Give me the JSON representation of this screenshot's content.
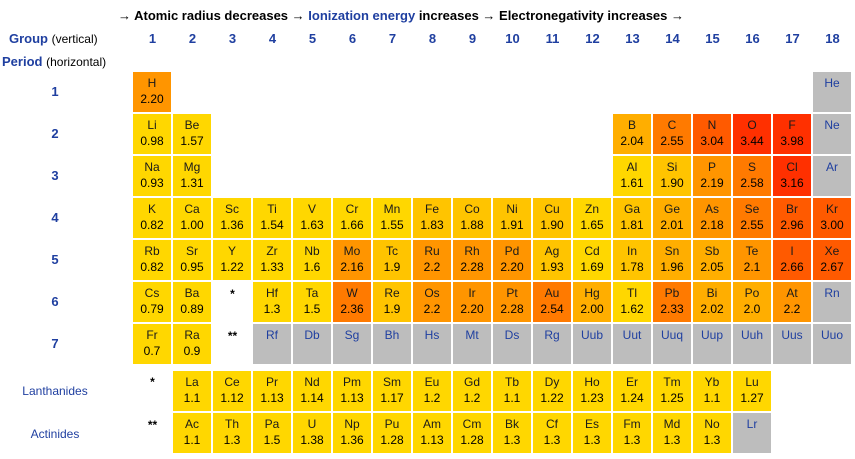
{
  "header": {
    "part1": "→ Atomic radius decreases →",
    "part2": "Ionization energy",
    "part3": "increases → Electronegativity increases →"
  },
  "labels": {
    "group": "Group",
    "group_sub": "(vertical)",
    "period": "Period",
    "period_sub": "(horizontal)",
    "lanthanides": "Lanthanides",
    "actinides": "Actinides"
  },
  "groups": [
    "1",
    "2",
    "3",
    "4",
    "5",
    "6",
    "7",
    "8",
    "9",
    "10",
    "11",
    "12",
    "13",
    "14",
    "15",
    "16",
    "17",
    "18"
  ],
  "periods": [
    "1",
    "2",
    "3",
    "4",
    "5",
    "6",
    "7"
  ],
  "stars": {
    "row6": "*",
    "row7": "**",
    "lan": "*",
    "act": "**"
  },
  "elements": [
    {
      "r": 1,
      "c": 1,
      "s": "H",
      "v": "2.20"
    },
    {
      "r": 1,
      "c": 18,
      "s": "He",
      "v": ""
    },
    {
      "r": 2,
      "c": 1,
      "s": "Li",
      "v": "0.98"
    },
    {
      "r": 2,
      "c": 2,
      "s": "Be",
      "v": "1.57"
    },
    {
      "r": 2,
      "c": 13,
      "s": "B",
      "v": "2.04"
    },
    {
      "r": 2,
      "c": 14,
      "s": "C",
      "v": "2.55"
    },
    {
      "r": 2,
      "c": 15,
      "s": "N",
      "v": "3.04"
    },
    {
      "r": 2,
      "c": 16,
      "s": "O",
      "v": "3.44"
    },
    {
      "r": 2,
      "c": 17,
      "s": "F",
      "v": "3.98"
    },
    {
      "r": 2,
      "c": 18,
      "s": "Ne",
      "v": ""
    },
    {
      "r": 3,
      "c": 1,
      "s": "Na",
      "v": "0.93"
    },
    {
      "r": 3,
      "c": 2,
      "s": "Mg",
      "v": "1.31"
    },
    {
      "r": 3,
      "c": 13,
      "s": "Al",
      "v": "1.61"
    },
    {
      "r": 3,
      "c": 14,
      "s": "Si",
      "v": "1.90"
    },
    {
      "r": 3,
      "c": 15,
      "s": "P",
      "v": "2.19"
    },
    {
      "r": 3,
      "c": 16,
      "s": "S",
      "v": "2.58"
    },
    {
      "r": 3,
      "c": 17,
      "s": "Cl",
      "v": "3.16"
    },
    {
      "r": 3,
      "c": 18,
      "s": "Ar",
      "v": ""
    },
    {
      "r": 4,
      "c": 1,
      "s": "K",
      "v": "0.82"
    },
    {
      "r": 4,
      "c": 2,
      "s": "Ca",
      "v": "1.00"
    },
    {
      "r": 4,
      "c": 3,
      "s": "Sc",
      "v": "1.36"
    },
    {
      "r": 4,
      "c": 4,
      "s": "Ti",
      "v": "1.54"
    },
    {
      "r": 4,
      "c": 5,
      "s": "V",
      "v": "1.63"
    },
    {
      "r": 4,
      "c": 6,
      "s": "Cr",
      "v": "1.66"
    },
    {
      "r": 4,
      "c": 7,
      "s": "Mn",
      "v": "1.55"
    },
    {
      "r": 4,
      "c": 8,
      "s": "Fe",
      "v": "1.83"
    },
    {
      "r": 4,
      "c": 9,
      "s": "Co",
      "v": "1.88"
    },
    {
      "r": 4,
      "c": 10,
      "s": "Ni",
      "v": "1.91"
    },
    {
      "r": 4,
      "c": 11,
      "s": "Cu",
      "v": "1.90"
    },
    {
      "r": 4,
      "c": 12,
      "s": "Zn",
      "v": "1.65"
    },
    {
      "r": 4,
      "c": 13,
      "s": "Ga",
      "v": "1.81"
    },
    {
      "r": 4,
      "c": 14,
      "s": "Ge",
      "v": "2.01"
    },
    {
      "r": 4,
      "c": 15,
      "s": "As",
      "v": "2.18"
    },
    {
      "r": 4,
      "c": 16,
      "s": "Se",
      "v": "2.55"
    },
    {
      "r": 4,
      "c": 17,
      "s": "Br",
      "v": "2.96"
    },
    {
      "r": 4,
      "c": 18,
      "s": "Kr",
      "v": "3.00"
    },
    {
      "r": 5,
      "c": 1,
      "s": "Rb",
      "v": "0.82"
    },
    {
      "r": 5,
      "c": 2,
      "s": "Sr",
      "v": "0.95"
    },
    {
      "r": 5,
      "c": 3,
      "s": "Y",
      "v": "1.22"
    },
    {
      "r": 5,
      "c": 4,
      "s": "Zr",
      "v": "1.33"
    },
    {
      "r": 5,
      "c": 5,
      "s": "Nb",
      "v": "1.6"
    },
    {
      "r": 5,
      "c": 6,
      "s": "Mo",
      "v": "2.16"
    },
    {
      "r": 5,
      "c": 7,
      "s": "Tc",
      "v": "1.9"
    },
    {
      "r": 5,
      "c": 8,
      "s": "Ru",
      "v": "2.2"
    },
    {
      "r": 5,
      "c": 9,
      "s": "Rh",
      "v": "2.28"
    },
    {
      "r": 5,
      "c": 10,
      "s": "Pd",
      "v": "2.20"
    },
    {
      "r": 5,
      "c": 11,
      "s": "Ag",
      "v": "1.93"
    },
    {
      "r": 5,
      "c": 12,
      "s": "Cd",
      "v": "1.69"
    },
    {
      "r": 5,
      "c": 13,
      "s": "In",
      "v": "1.78"
    },
    {
      "r": 5,
      "c": 14,
      "s": "Sn",
      "v": "1.96"
    },
    {
      "r": 5,
      "c": 15,
      "s": "Sb",
      "v": "2.05"
    },
    {
      "r": 5,
      "c": 16,
      "s": "Te",
      "v": "2.1"
    },
    {
      "r": 5,
      "c": 17,
      "s": "I",
      "v": "2.66"
    },
    {
      "r": 5,
      "c": 18,
      "s": "Xe",
      "v": "2.67"
    },
    {
      "r": 6,
      "c": 1,
      "s": "Cs",
      "v": "0.79"
    },
    {
      "r": 6,
      "c": 2,
      "s": "Ba",
      "v": "0.89"
    },
    {
      "r": 6,
      "c": 4,
      "s": "Hf",
      "v": "1.3"
    },
    {
      "r": 6,
      "c": 5,
      "s": "Ta",
      "v": "1.5"
    },
    {
      "r": 6,
      "c": 6,
      "s": "W",
      "v": "2.36"
    },
    {
      "r": 6,
      "c": 7,
      "s": "Re",
      "v": "1.9"
    },
    {
      "r": 6,
      "c": 8,
      "s": "Os",
      "v": "2.2"
    },
    {
      "r": 6,
      "c": 9,
      "s": "Ir",
      "v": "2.20"
    },
    {
      "r": 6,
      "c": 10,
      "s": "Pt",
      "v": "2.28"
    },
    {
      "r": 6,
      "c": 11,
      "s": "Au",
      "v": "2.54"
    },
    {
      "r": 6,
      "c": 12,
      "s": "Hg",
      "v": "2.00"
    },
    {
      "r": 6,
      "c": 13,
      "s": "Tl",
      "v": "1.62"
    },
    {
      "r": 6,
      "c": 14,
      "s": "Pb",
      "v": "2.33"
    },
    {
      "r": 6,
      "c": 15,
      "s": "Bi",
      "v": "2.02"
    },
    {
      "r": 6,
      "c": 16,
      "s": "Po",
      "v": "2.0"
    },
    {
      "r": 6,
      "c": 17,
      "s": "At",
      "v": "2.2"
    },
    {
      "r": 6,
      "c": 18,
      "s": "Rn",
      "v": ""
    },
    {
      "r": 7,
      "c": 1,
      "s": "Fr",
      "v": "0.7"
    },
    {
      "r": 7,
      "c": 2,
      "s": "Ra",
      "v": "0.9"
    },
    {
      "r": 7,
      "c": 4,
      "s": "Rf",
      "v": ""
    },
    {
      "r": 7,
      "c": 5,
      "s": "Db",
      "v": ""
    },
    {
      "r": 7,
      "c": 6,
      "s": "Sg",
      "v": ""
    },
    {
      "r": 7,
      "c": 7,
      "s": "Bh",
      "v": ""
    },
    {
      "r": 7,
      "c": 8,
      "s": "Hs",
      "v": ""
    },
    {
      "r": 7,
      "c": 9,
      "s": "Mt",
      "v": ""
    },
    {
      "r": 7,
      "c": 10,
      "s": "Ds",
      "v": ""
    },
    {
      "r": 7,
      "c": 11,
      "s": "Rg",
      "v": ""
    },
    {
      "r": 7,
      "c": 12,
      "s": "Uub",
      "v": ""
    },
    {
      "r": 7,
      "c": 13,
      "s": "Uut",
      "v": ""
    },
    {
      "r": 7,
      "c": 14,
      "s": "Uuq",
      "v": ""
    },
    {
      "r": 7,
      "c": 15,
      "s": "Uup",
      "v": ""
    },
    {
      "r": 7,
      "c": 16,
      "s": "Uuh",
      "v": ""
    },
    {
      "r": 7,
      "c": 17,
      "s": "Uus",
      "v": ""
    },
    {
      "r": 7,
      "c": 18,
      "s": "Uuo",
      "v": ""
    },
    {
      "r": 8,
      "c": 2,
      "s": "La",
      "v": "1.1"
    },
    {
      "r": 8,
      "c": 3,
      "s": "Ce",
      "v": "1.12"
    },
    {
      "r": 8,
      "c": 4,
      "s": "Pr",
      "v": "1.13"
    },
    {
      "r": 8,
      "c": 5,
      "s": "Nd",
      "v": "1.14"
    },
    {
      "r": 8,
      "c": 6,
      "s": "Pm",
      "v": "1.13"
    },
    {
      "r": 8,
      "c": 7,
      "s": "Sm",
      "v": "1.17"
    },
    {
      "r": 8,
      "c": 8,
      "s": "Eu",
      "v": "1.2"
    },
    {
      "r": 8,
      "c": 9,
      "s": "Gd",
      "v": "1.2"
    },
    {
      "r": 8,
      "c": 10,
      "s": "Tb",
      "v": "1.1"
    },
    {
      "r": 8,
      "c": 11,
      "s": "Dy",
      "v": "1.22"
    },
    {
      "r": 8,
      "c": 12,
      "s": "Ho",
      "v": "1.23"
    },
    {
      "r": 8,
      "c": 13,
      "s": "Er",
      "v": "1.24"
    },
    {
      "r": 8,
      "c": 14,
      "s": "Tm",
      "v": "1.25"
    },
    {
      "r": 8,
      "c": 15,
      "s": "Yb",
      "v": "1.1"
    },
    {
      "r": 8,
      "c": 16,
      "s": "Lu",
      "v": "1.27"
    },
    {
      "r": 9,
      "c": 2,
      "s": "Ac",
      "v": "1.1"
    },
    {
      "r": 9,
      "c": 3,
      "s": "Th",
      "v": "1.3"
    },
    {
      "r": 9,
      "c": 4,
      "s": "Pa",
      "v": "1.5"
    },
    {
      "r": 9,
      "c": 5,
      "s": "U",
      "v": "1.38"
    },
    {
      "r": 9,
      "c": 6,
      "s": "Np",
      "v": "1.36"
    },
    {
      "r": 9,
      "c": 7,
      "s": "Pu",
      "v": "1.28"
    },
    {
      "r": 9,
      "c": 8,
      "s": "Am",
      "v": "1.13"
    },
    {
      "r": 9,
      "c": 9,
      "s": "Cm",
      "v": "1.28"
    },
    {
      "r": 9,
      "c": 10,
      "s": "Bk",
      "v": "1.3"
    },
    {
      "r": 9,
      "c": 11,
      "s": "Cf",
      "v": "1.3"
    },
    {
      "r": 9,
      "c": 12,
      "s": "Es",
      "v": "1.3"
    },
    {
      "r": 9,
      "c": 13,
      "s": "Fm",
      "v": "1.3"
    },
    {
      "r": 9,
      "c": 14,
      "s": "Md",
      "v": "1.3"
    },
    {
      "r": 9,
      "c": 15,
      "s": "No",
      "v": "1.3"
    },
    {
      "r": 9,
      "c": 16,
      "s": "Lr",
      "v": ""
    }
  ],
  "colors": {
    "unknown": "#bdbdbd",
    "scale": [
      "#ffd700",
      "#ffc400",
      "#ffae00",
      "#ff9500",
      "#ff7a00",
      "#ff5a00",
      "#ff3000"
    ]
  }
}
